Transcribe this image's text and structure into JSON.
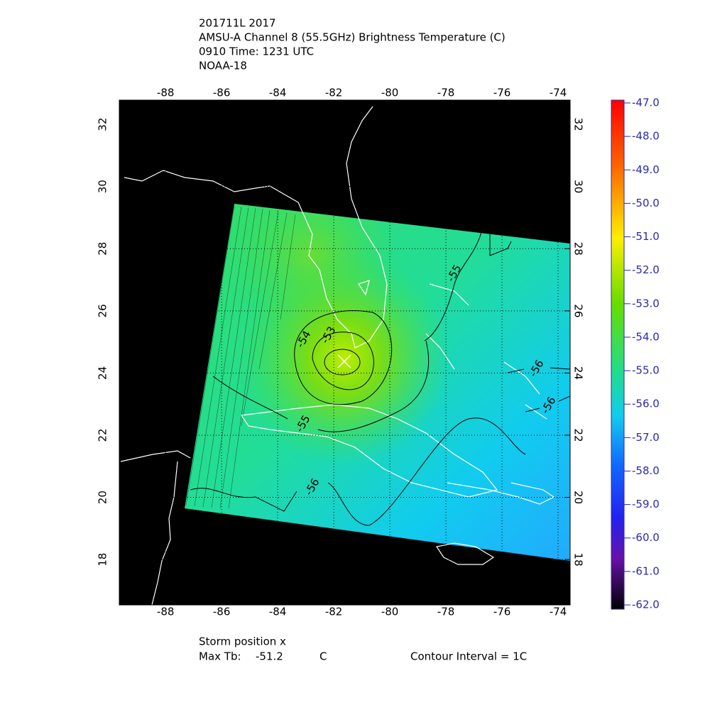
{
  "header": {
    "lines": [
      "201711L 2017",
      "AMSU-A Channel 8 (55.5GHz) Brightness Temperature (C)",
      "0910 Time: 1231 UTC",
      "NOAA-18"
    ]
  },
  "map": {
    "xlim": [
      -89.65,
      -73.57
    ],
    "ylim": [
      16.54,
      32.78
    ],
    "xticks": [
      -88,
      -86,
      -84,
      -82,
      -80,
      -78,
      -76,
      -74
    ],
    "yticks": [
      18,
      20,
      22,
      24,
      26,
      28,
      30,
      32
    ],
    "grid": true,
    "contours": [
      -53,
      -54,
      -55,
      -55,
      -56,
      -56,
      -56
    ]
  },
  "colorbar": {
    "clim": [
      -62,
      -47
    ],
    "ticks": [
      {
        "value": -47,
        "label": "-47.0"
      },
      {
        "value": -48,
        "label": "-48.0"
      },
      {
        "value": -49,
        "label": "-49.0"
      },
      {
        "value": -50,
        "label": "-50.0"
      },
      {
        "value": -51,
        "label": "-51.0"
      },
      {
        "value": -52,
        "label": "-52.0"
      },
      {
        "value": -53,
        "label": "-53.0"
      },
      {
        "value": -54,
        "label": "-54.0"
      },
      {
        "value": -55,
        "label": "-55.0"
      },
      {
        "value": -56,
        "label": "-56.0"
      },
      {
        "value": -57,
        "label": "-57.0"
      },
      {
        "value": -58,
        "label": "-58.0"
      },
      {
        "value": -59,
        "label": "-59.0"
      },
      {
        "value": -60,
        "label": "-60.0"
      },
      {
        "value": -61,
        "label": "-61.0"
      },
      {
        "value": -62,
        "label": "-62.0"
      }
    ]
  },
  "footer": {
    "storm": "Storm position x",
    "max_label": "Max Tb:",
    "max_value": -51.2,
    "max_unit": "C",
    "contour_interval": "Contour Interval = 1C"
  }
}
